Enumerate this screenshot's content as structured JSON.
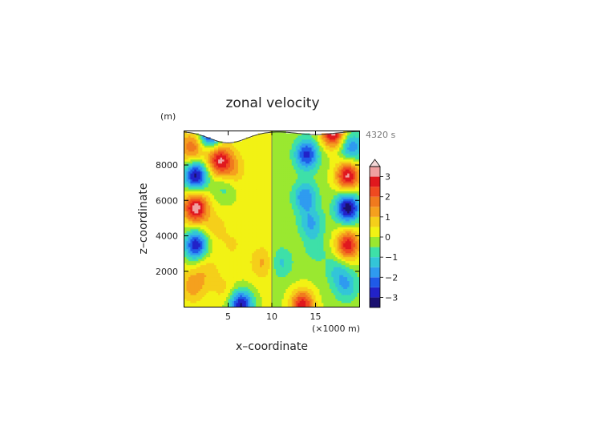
{
  "chart_data": {
    "type": "heatmap",
    "title": "zonal velocity",
    "xlabel": "x–coordinate",
    "ylabel": "z–coordinate",
    "y_unit": "(m)",
    "x_unit": "(×1000 m)",
    "time_label": "4320 s",
    "xlim": [
      0,
      20
    ],
    "ylim": [
      0,
      9900
    ],
    "x_ticks": [
      "5",
      "10",
      "15"
    ],
    "x_tick_values": [
      5,
      10,
      15
    ],
    "y_ticks": [
      "2000",
      "4000",
      "6000",
      "8000"
    ],
    "y_tick_values": [
      2000,
      4000,
      6000,
      8000
    ],
    "colorbar": {
      "labels": [
        "3",
        "2",
        "1",
        "0",
        "−1",
        "−2",
        "−3"
      ],
      "label_values": [
        3,
        2,
        1,
        0,
        -1,
        -2,
        -3
      ],
      "range": [
        -3.5,
        3.5
      ],
      "extend": "max",
      "levels": [
        -3.5,
        -3.0,
        -2.5,
        -2.0,
        -1.5,
        -1.0,
        -0.5,
        0.0,
        0.5,
        1.0,
        1.5,
        2.0,
        2.5,
        3.0,
        3.5
      ],
      "colors": [
        "#1a1070",
        "#2222c8",
        "#1f5ae8",
        "#2f9bf0",
        "#33c5d8",
        "#3ee0a8",
        "#9ae830",
        "#f2f214",
        "#f5cf1a",
        "#f5a01e",
        "#f07a1e",
        "#ef4a20",
        "#e0181e",
        "#f0a0a0"
      ]
    },
    "features": [
      {
        "x": 0.9,
        "z": 9000,
        "u": 1.8
      },
      {
        "x": 1.3,
        "z": 7400,
        "u": -3.3
      },
      {
        "x": 1.3,
        "z": 5600,
        "u": 3.2
      },
      {
        "x": 1.3,
        "z": 3500,
        "u": -3.0
      },
      {
        "x": 1.0,
        "z": 1200,
        "u": 1.2
      },
      {
        "x": 4.0,
        "z": 8300,
        "u": 2.8
      },
      {
        "x": 5.5,
        "z": 7800,
        "u": 1.0
      },
      {
        "x": 4.5,
        "z": 6700,
        "u": -0.8
      },
      {
        "x": 3.5,
        "z": 4500,
        "u": 0.6
      },
      {
        "x": 5.5,
        "z": 3500,
        "u": 0.4
      },
      {
        "x": 2.5,
        "z": 2100,
        "u": 0.7
      },
      {
        "x": 4.5,
        "z": 1000,
        "u": 0.5
      },
      {
        "x": 6.5,
        "z": 100,
        "u": -3.2
      },
      {
        "x": 13.5,
        "z": 100,
        "u": 3.0
      },
      {
        "x": 9.0,
        "z": 2500,
        "u": 1.0
      },
      {
        "x": 11.0,
        "z": 2500,
        "u": -1.0
      },
      {
        "x": 14.0,
        "z": 8600,
        "u": -2.5
      },
      {
        "x": 13.8,
        "z": 6200,
        "u": -1.8
      },
      {
        "x": 14.5,
        "z": 4700,
        "u": -1.4
      },
      {
        "x": 15.0,
        "z": 3300,
        "u": -0.6
      },
      {
        "x": 17.5,
        "z": 2100,
        "u": -0.9
      },
      {
        "x": 18.5,
        "z": 1200,
        "u": -1.3
      },
      {
        "x": 19.1,
        "z": 9000,
        "u": -1.8
      },
      {
        "x": 18.7,
        "z": 7400,
        "u": 3.3
      },
      {
        "x": 18.7,
        "z": 5600,
        "u": -3.2
      },
      {
        "x": 18.7,
        "z": 3500,
        "u": 3.0
      },
      {
        "x": 3.0,
        "z": 9850,
        "u": -3.4
      },
      {
        "x": 17.0,
        "z": 9850,
        "u": 3.4
      }
    ]
  }
}
